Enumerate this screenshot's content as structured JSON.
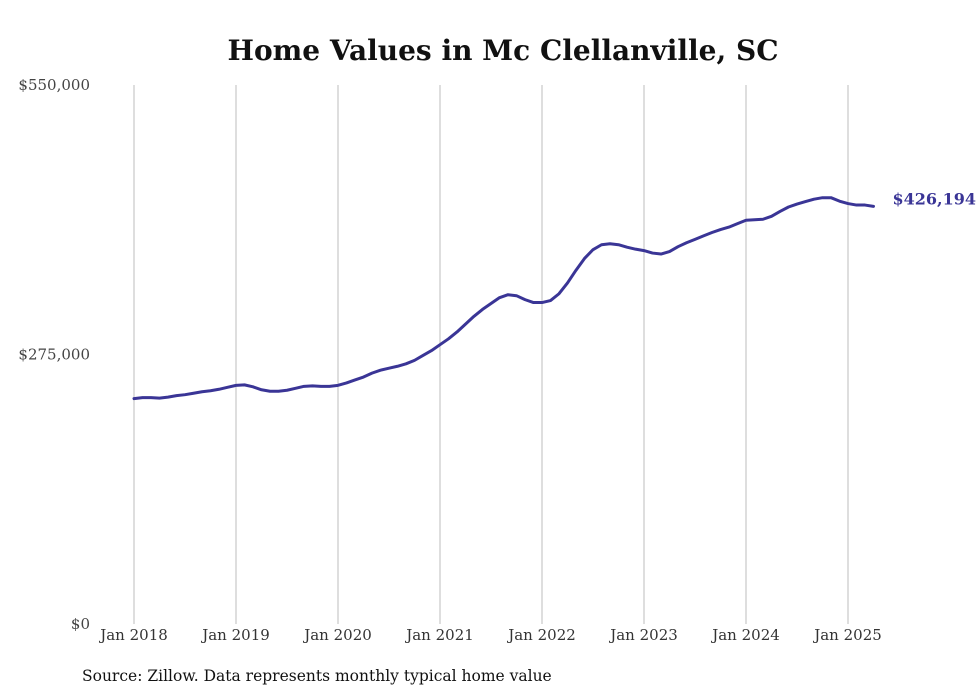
{
  "source_note": "Source: Zillow. Data represents monthly typical home value",
  "chart_data": {
    "type": "line",
    "title": "Home Values in Mc Clellanville, SC",
    "xlabel": "",
    "ylabel": "",
    "ylim": [
      0,
      550000
    ],
    "yticks": [
      0,
      275000,
      550000
    ],
    "ytick_labels": [
      "$0",
      "$275,000",
      "$550,000"
    ],
    "xticks": [
      "2018-01",
      "2019-01",
      "2020-01",
      "2021-01",
      "2022-01",
      "2023-01",
      "2024-01",
      "2025-01"
    ],
    "xtick_labels": [
      "Jan 2018",
      "Jan 2019",
      "Jan 2020",
      "Jan 2021",
      "Jan 2022",
      "Jan 2023",
      "Jan 2024",
      "Jan 2025"
    ],
    "grid": "vertical",
    "line_color": "#3a3596",
    "end_label": "$426,194",
    "x": [
      "2018-01",
      "2018-02",
      "2018-03",
      "2018-04",
      "2018-05",
      "2018-06",
      "2018-07",
      "2018-08",
      "2018-09",
      "2018-10",
      "2018-11",
      "2018-12",
      "2019-01",
      "2019-02",
      "2019-03",
      "2019-04",
      "2019-05",
      "2019-06",
      "2019-07",
      "2019-08",
      "2019-09",
      "2019-10",
      "2019-11",
      "2019-12",
      "2020-01",
      "2020-02",
      "2020-03",
      "2020-04",
      "2020-05",
      "2020-06",
      "2020-07",
      "2020-08",
      "2020-09",
      "2020-10",
      "2020-11",
      "2020-12",
      "2021-01",
      "2021-02",
      "2021-03",
      "2021-04",
      "2021-05",
      "2021-06",
      "2021-07",
      "2021-08",
      "2021-09",
      "2021-10",
      "2021-11",
      "2021-12",
      "2022-01",
      "2022-02",
      "2022-03",
      "2022-04",
      "2022-05",
      "2022-06",
      "2022-07",
      "2022-08",
      "2022-09",
      "2022-10",
      "2022-11",
      "2022-12",
      "2023-01",
      "2023-02",
      "2023-03",
      "2023-04",
      "2023-05",
      "2023-06",
      "2023-07",
      "2023-08",
      "2023-09",
      "2023-10",
      "2023-11",
      "2023-12",
      "2024-01",
      "2024-02",
      "2024-03",
      "2024-04",
      "2024-05",
      "2024-06",
      "2024-07",
      "2024-08",
      "2024-09",
      "2024-10",
      "2024-11",
      "2024-12",
      "2025-01",
      "2025-02",
      "2025-03",
      "2025-04"
    ],
    "values": [
      230000,
      231000,
      231000,
      230500,
      231500,
      233000,
      234000,
      235500,
      237000,
      238000,
      239500,
      241500,
      243500,
      244000,
      242000,
      239000,
      237500,
      237500,
      238500,
      240500,
      242500,
      243000,
      242500,
      242500,
      243500,
      246000,
      249000,
      252000,
      256000,
      259000,
      261000,
      263000,
      265500,
      269000,
      274000,
      279000,
      285000,
      291000,
      298000,
      306000,
      314000,
      321000,
      327000,
      333000,
      336000,
      335000,
      331000,
      328000,
      328000,
      330000,
      337000,
      348000,
      361000,
      373000,
      382000,
      387000,
      388000,
      387000,
      384500,
      382500,
      381000,
      378500,
      377500,
      380000,
      385000,
      389000,
      392500,
      396000,
      399500,
      402500,
      405000,
      408500,
      412000,
      412500,
      413000,
      416000,
      421000,
      425500,
      428500,
      431000,
      433500,
      435000,
      435000,
      431500,
      429000,
      427500,
      427500,
      426194
    ]
  }
}
